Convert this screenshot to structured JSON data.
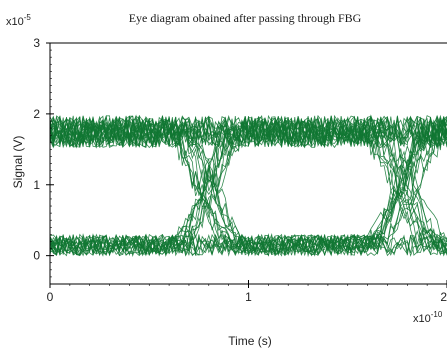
{
  "chart_data": {
    "type": "line",
    "title": "Eye diagram obained after passing through FBG",
    "xlabel": "Time (s)",
    "ylabel": "Signal (V)",
    "x_multiplier": {
      "base": "x10",
      "exp": "-10"
    },
    "y_multiplier": {
      "base": "x10",
      "exp": "-5"
    },
    "xlim": [
      0,
      2
    ],
    "ylim": [
      -0.4,
      3
    ],
    "x_ticks": [
      {
        "value": 0,
        "label": "0"
      },
      {
        "value": 1,
        "label": "1"
      },
      {
        "value": 2,
        "label": "2"
      }
    ],
    "y_ticks": [
      {
        "value": 0,
        "label": "0"
      },
      {
        "value": 1,
        "label": "1"
      },
      {
        "value": 2,
        "label": "2"
      },
      {
        "value": 3,
        "label": "3"
      }
    ],
    "grid": false,
    "legend": "none",
    "eye": {
      "bit_period": 1,
      "transition_center": 0.8,
      "transition_width": 0.35,
      "high_level": 1.75,
      "low_level": 0.15,
      "high_noise": 0.45,
      "low_noise": 0.3,
      "samples_per_trace": 60,
      "trace_count": 44
    },
    "line_color": "#117733"
  }
}
